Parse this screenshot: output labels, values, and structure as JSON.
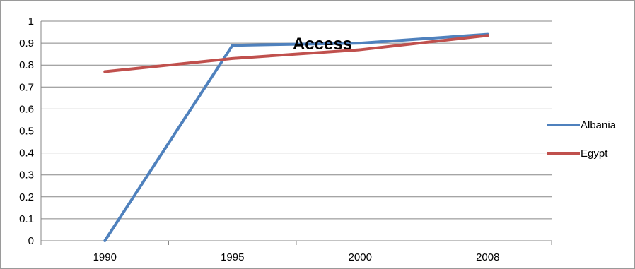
{
  "chart_data": {
    "type": "line",
    "title": "Access",
    "categories": [
      "1990",
      "1995",
      "2000",
      "2008"
    ],
    "series": [
      {
        "name": "Albania",
        "values": [
          0,
          0.89,
          0.9,
          0.94
        ],
        "color": "#4f81bd"
      },
      {
        "name": "Egypt",
        "values": [
          0.77,
          0.83,
          0.87,
          0.935
        ],
        "color": "#c0504d"
      }
    ],
    "ylim": [
      0,
      1
    ],
    "yticks": [
      "0",
      "0.1",
      "0.2",
      "0.3",
      "0.4",
      "0.5",
      "0.6",
      "0.7",
      "0.8",
      "0.9",
      "1"
    ],
    "grid": true,
    "legend_position": "right"
  }
}
